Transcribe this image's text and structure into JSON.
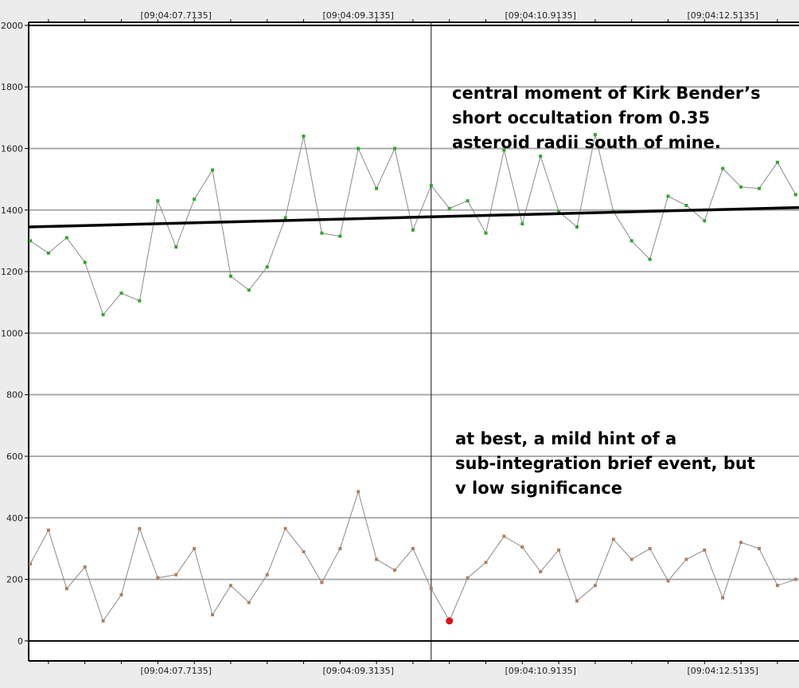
{
  "chart_data": {
    "type": "line",
    "x_ticks": [
      "[09:04:07.7135]",
      "[09:04:09.3135]",
      "[09:04:10.9135]",
      "[09:04:12.5135]"
    ],
    "y_ticks": [
      0,
      200,
      400,
      600,
      800,
      1000,
      1200,
      1400,
      1600,
      1800,
      2000
    ],
    "ylim": [
      -65,
      2010
    ],
    "grid": "horizontal",
    "marker_time_index": 22,
    "series": [
      {
        "color": "#2ea82e",
        "values": [
          1300,
          1260,
          1310,
          1230,
          1060,
          1130,
          1105,
          1430,
          1280,
          1435,
          1530,
          1185,
          1140,
          1215,
          1375,
          1640,
          1325,
          1315,
          1600,
          1470,
          1600,
          1335,
          1480,
          1405,
          1430,
          1325,
          1595,
          1355,
          1575,
          1395,
          1345,
          1645,
          1395,
          1300,
          1240,
          1445,
          1415,
          1365,
          1535,
          1475,
          1470,
          1555,
          1450
        ]
      },
      {
        "color": "#b57d5a",
        "values": [
          250,
          360,
          170,
          240,
          65,
          150,
          365,
          205,
          215,
          300,
          85,
          180,
          125,
          215,
          365,
          290,
          190,
          300,
          485,
          265,
          230,
          300,
          170,
          65,
          205,
          255,
          340,
          305,
          225,
          295,
          130,
          180,
          330,
          265,
          300,
          195,
          265,
          295,
          140,
          320,
          300,
          180,
          200
        ]
      }
    ],
    "trend_line": {
      "color": "#000000",
      "start_value": 1345,
      "end_value": 1408
    },
    "highlight_point": {
      "series": 1,
      "index": 23,
      "value": 65,
      "color": "#e01010"
    },
    "annotations": [
      {
        "lines": [
          "central moment of Kirk Bender’s",
          "short occultation from 0.35",
          "asteroid radii south of mine."
        ]
      },
      {
        "lines": [
          "at best, a mild hint of a",
          "sub-integration brief event, but",
          "v low significance"
        ]
      }
    ]
  }
}
